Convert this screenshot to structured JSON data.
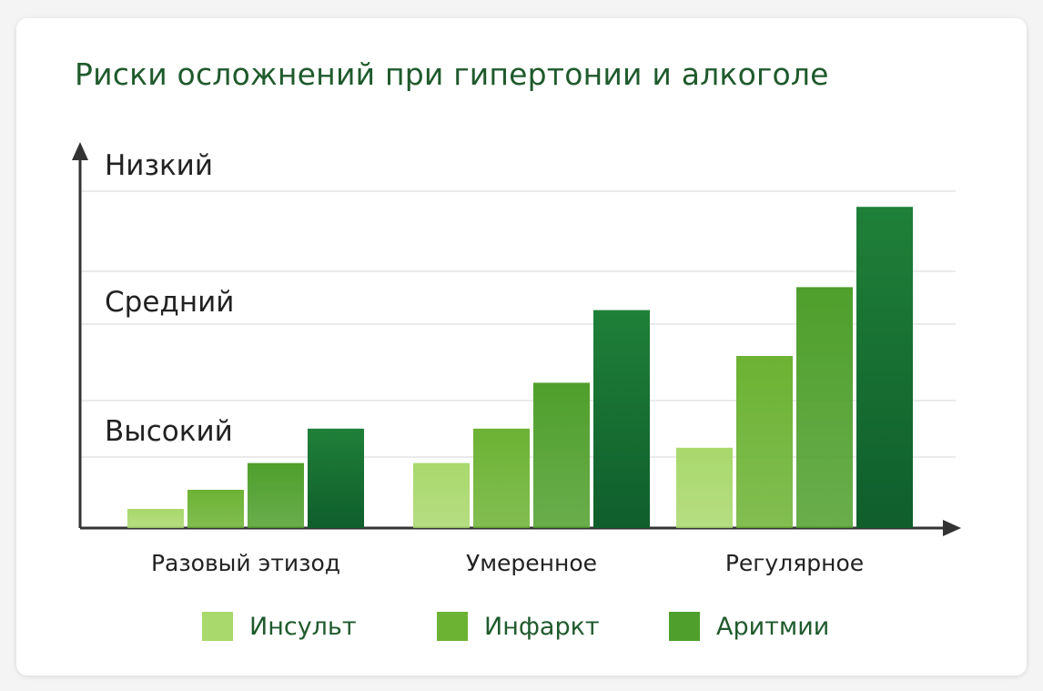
{
  "chart_data": {
    "type": "bar",
    "title": "Риски осложнений при гипертонии и алкоголе",
    "categories": [
      "Разовый этизод",
      "Умеренное",
      "Регулярное"
    ],
    "y_category_labels": [
      "Низкий",
      "Средний",
      "Высокий"
    ],
    "ylim": [
      0,
      100
    ],
    "grid": true,
    "legend_position": "bottom",
    "series": [
      {
        "name": "Инсульт",
        "values": [
          5,
          17,
          21
        ],
        "color": "#a9d86c"
      },
      {
        "name": "Инфаркт",
        "values": [
          10,
          26,
          45
        ],
        "color": "#6cb233"
      },
      {
        "name": "Аритмии",
        "values": [
          17,
          38,
          63
        ],
        "color": "#4f9f2c"
      },
      {
        "values": [
          26,
          57,
          84
        ],
        "color": "#1f8038"
      }
    ]
  }
}
